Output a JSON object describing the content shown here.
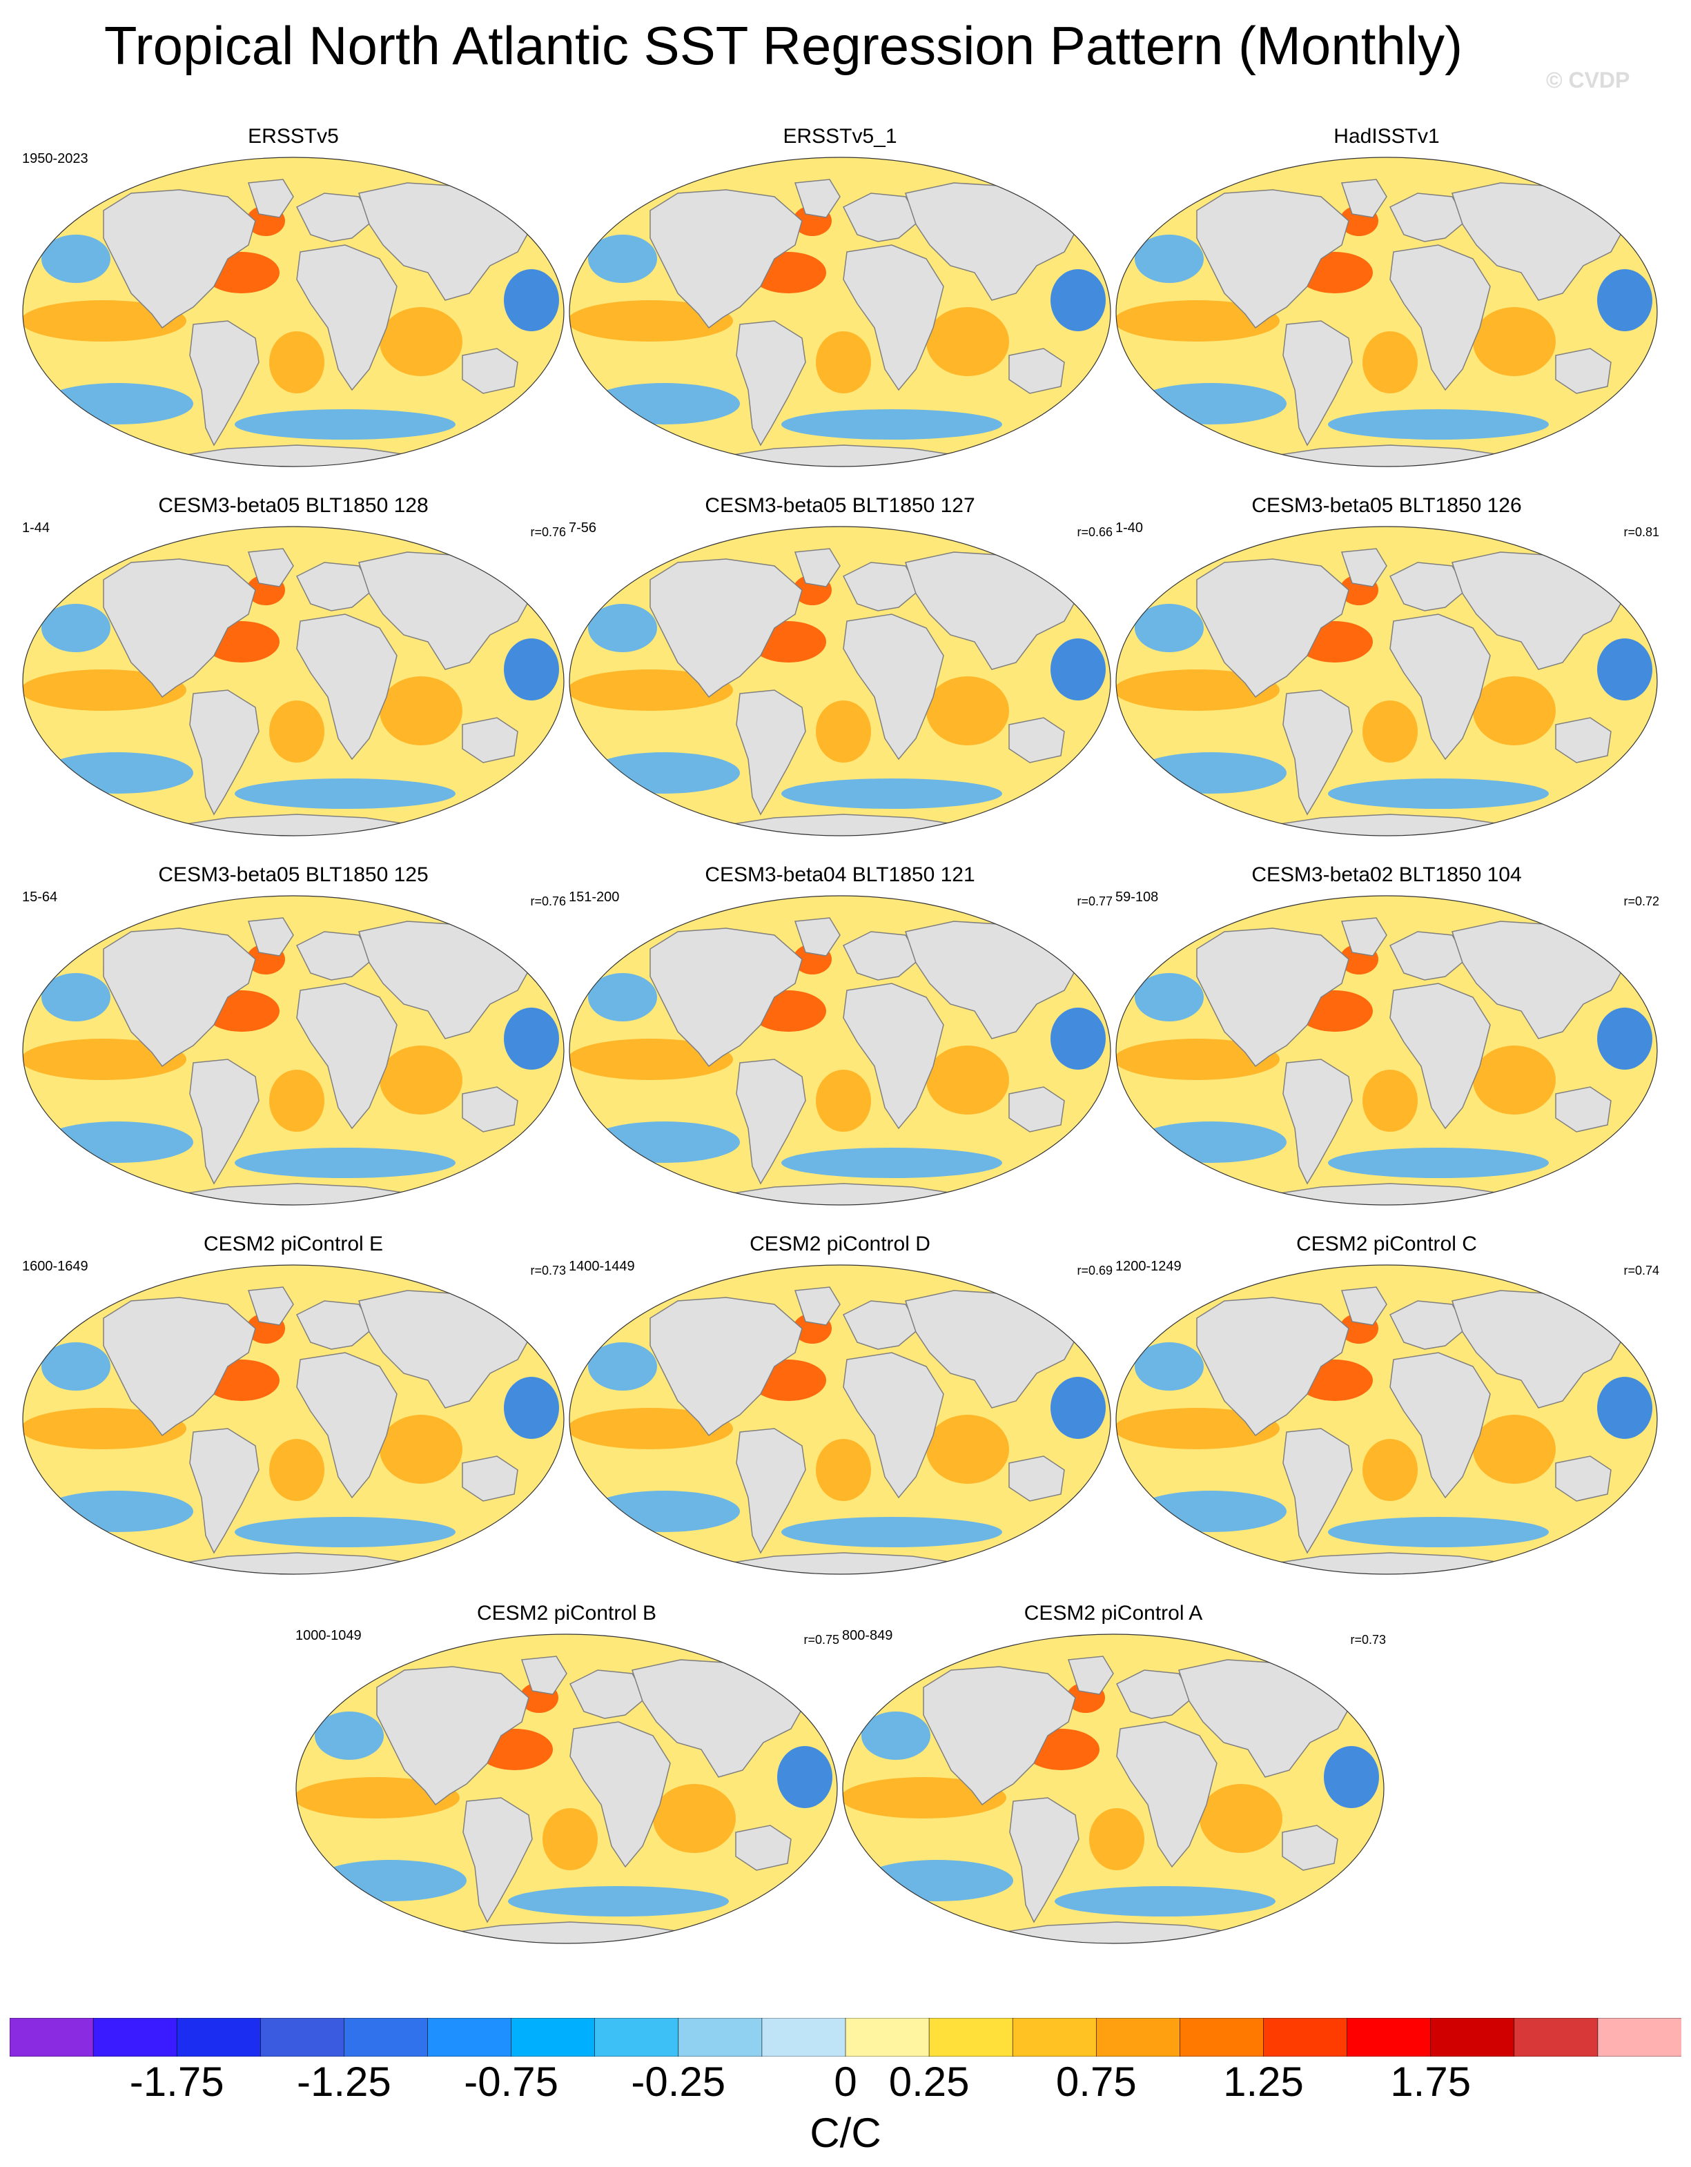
{
  "title": "Tropical North Atlantic SST Regression Pattern (Monthly)",
  "watermark": "© CVDP",
  "panels": [
    {
      "title": "ERSSTv5",
      "years": "1950-2023",
      "corr": ""
    },
    {
      "title": "ERSSTv5_1",
      "years": "",
      "corr": ""
    },
    {
      "title": "HadISSTv1",
      "years": "",
      "corr": ""
    },
    {
      "title": "CESM3-beta05 BLT1850 128",
      "years": "1-44",
      "corr": "r=0.76"
    },
    {
      "title": "CESM3-beta05 BLT1850 127",
      "years": "7-56",
      "corr": "r=0.66"
    },
    {
      "title": "CESM3-beta05 BLT1850 126",
      "years": "1-40",
      "corr": "r=0.81"
    },
    {
      "title": "CESM3-beta05 BLT1850 125",
      "years": "15-64",
      "corr": "r=0.76"
    },
    {
      "title": "CESM3-beta04 BLT1850 121",
      "years": "151-200",
      "corr": "r=0.77"
    },
    {
      "title": "CESM3-beta02 BLT1850 104",
      "years": "59-108",
      "corr": "r=0.72"
    },
    {
      "title": "CESM2 piControl E",
      "years": "1600-1649",
      "corr": "r=0.73"
    },
    {
      "title": "CESM2 piControl D",
      "years": "1400-1449",
      "corr": "r=0.69"
    },
    {
      "title": "CESM2 piControl C",
      "years": "1200-1249",
      "corr": "r=0.74"
    },
    {
      "title": "CESM2 piControl B",
      "years": "1000-1049",
      "corr": "r=0.75"
    },
    {
      "title": "CESM2 piControl A",
      "years": "800-849",
      "corr": "r=0.73"
    }
  ],
  "colorbar": {
    "units": "C/C",
    "tick_labels": [
      "-1.75",
      "-1.25",
      "-0.75",
      "-0.25",
      "0",
      "0.25",
      "0.75",
      "1.25",
      "1.75"
    ],
    "colors": [
      "#8a2be2",
      "#3a1bff",
      "#1a2df0",
      "#3a5ae0",
      "#2f72ec",
      "#1e90ff",
      "#00b0ff",
      "#3cc0f5",
      "#90d0f0",
      "#c0e4f7",
      "#fff5a0",
      "#ffdf3a",
      "#ffc222",
      "#ffa010",
      "#ff7800",
      "#ff3c00",
      "#ff0000",
      "#d00000",
      "#d83838",
      "#ffb0b0"
    ]
  },
  "map_colors": {
    "land": "#e0e0e0",
    "coast": "#7f7f7f",
    "ocean_base": "#ffe87a",
    "warm": "#ffb020",
    "hot": "#ff5a00",
    "cold": "#5bb0f0",
    "colder": "#2f82e8"
  }
}
